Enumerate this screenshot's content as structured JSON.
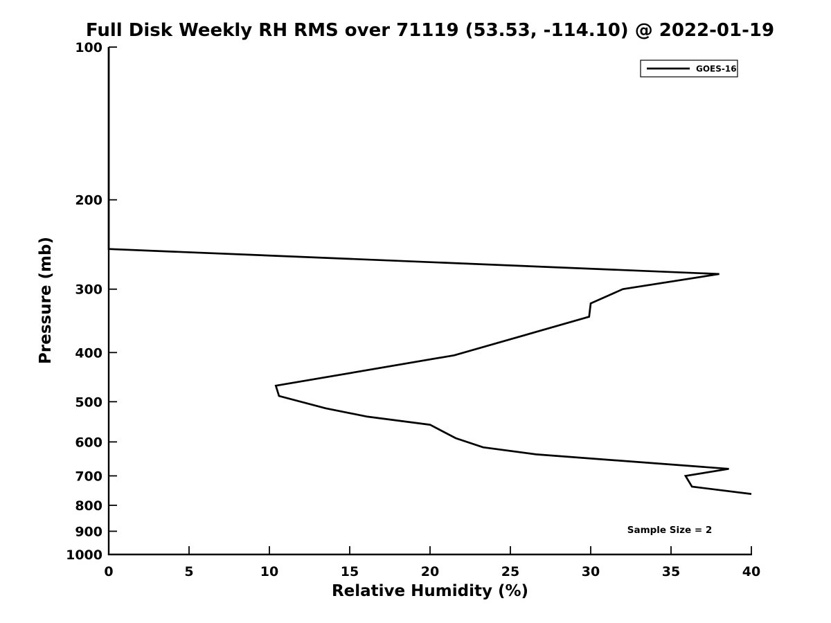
{
  "figure": {
    "background_color": "#ffffff",
    "foreground_color": "#000000"
  },
  "chart_data": {
    "type": "line",
    "title": "Full Disk Weekly RH RMS over 71119 (53.53, -114.10) @ 2022-01-19",
    "xlabel": "Relative Humidity (%)",
    "ylabel": "Pressure (mb)",
    "xlim": [
      0,
      40
    ],
    "ylim": [
      100,
      1000
    ],
    "y_scale": "log",
    "y_inverted": true,
    "grid": false,
    "xticks": [
      0,
      5,
      10,
      15,
      20,
      25,
      30,
      35,
      40
    ],
    "yticks": [
      100,
      200,
      300,
      400,
      500,
      600,
      700,
      800,
      900,
      1000
    ],
    "legend": {
      "position": "upper-right",
      "entries": [
        {
          "label": "GOES-16",
          "color": "#000000",
          "style": "solid"
        }
      ]
    },
    "annotation": "Sample Size = 2",
    "series": [
      {
        "name": "GOES-16",
        "color": "#000000",
        "line_width": 2.7,
        "points_rh_pressure": [
          [
            0,
            100
          ],
          [
            0,
            250
          ],
          [
            38,
            280
          ],
          [
            32,
            300
          ],
          [
            30,
            320
          ],
          [
            29.9,
            340
          ],
          [
            21.5,
            405
          ],
          [
            10.4,
            465
          ],
          [
            10.6,
            487
          ],
          [
            13.5,
            515
          ],
          [
            16.1,
            535
          ],
          [
            20,
            555
          ],
          [
            21.6,
            590
          ],
          [
            23.3,
            615
          ],
          [
            26.6,
            635
          ],
          [
            38.6,
            678
          ],
          [
            35.9,
            700
          ],
          [
            36.3,
            735
          ],
          [
            40,
            760
          ]
        ]
      }
    ]
  }
}
